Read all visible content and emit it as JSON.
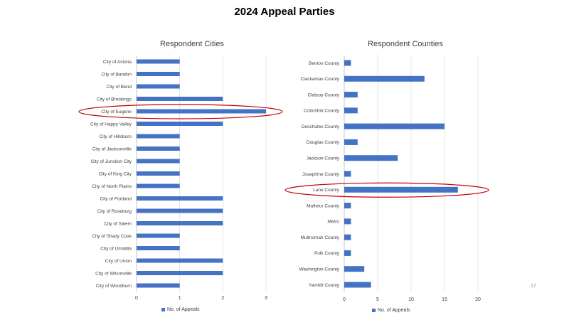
{
  "slide": {
    "title": "2024 Appeal Parties",
    "page_number": "17"
  },
  "colors": {
    "bar": "#4472C4",
    "highlight_ellipse": "#C00000",
    "gridline": "#D9D9D9",
    "text": "#404040"
  },
  "chart_data": [
    {
      "type": "bar",
      "orientation": "horizontal",
      "title": "Respondent Cities",
      "legend": "No. of Appeals",
      "legend_position": "bottom",
      "grid": true,
      "xlim": [
        0,
        3
      ],
      "xticks": [
        0,
        1,
        2,
        3
      ],
      "highlighted": "City of Eugene",
      "categories": [
        "City of Astoria",
        "City of Bandon",
        "City of Bend",
        "City of Brookings",
        "City of Eugene",
        "City of Happy Valley",
        "City of Hillsboro",
        "City of Jacksonville",
        "City of Junction City",
        "City of King City",
        "City of North Plains",
        "City of Portland",
        "City of Roseburg",
        "City of Salem",
        "City of Shady Cove",
        "City of Umatilla",
        "City of Union",
        "City of Wilsonville",
        "City of Woodburn"
      ],
      "values": [
        1,
        1,
        1,
        2,
        3,
        2,
        1,
        1,
        1,
        1,
        1,
        2,
        2,
        2,
        1,
        1,
        2,
        2,
        1
      ]
    },
    {
      "type": "bar",
      "orientation": "horizontal",
      "title": "Respondent Counties",
      "legend": "No. of Appeals",
      "legend_position": "bottom",
      "grid": true,
      "xlim": [
        0,
        20
      ],
      "xticks": [
        0,
        5,
        10,
        15,
        20
      ],
      "highlighted": "Lane County",
      "categories": [
        "Benton County",
        "Clackamas County",
        "Clatsop County",
        "Columbia County",
        "Deschutes County",
        "Douglas County",
        "Jackson County",
        "Josephine County",
        "Lane County",
        "Malheur County",
        "Metro",
        "Multnomah County",
        "Polk County",
        "Washington County",
        "Yamhill County"
      ],
      "values": [
        1,
        12,
        2,
        2,
        15,
        2,
        8,
        1,
        17,
        1,
        1,
        1,
        1,
        3,
        4
      ]
    }
  ]
}
